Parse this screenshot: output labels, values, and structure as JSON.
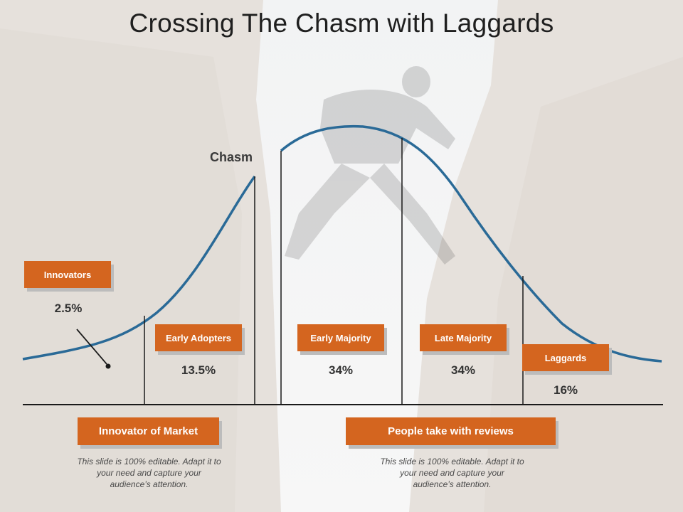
{
  "slide": {
    "title": "Crossing The Chasm with Laggards",
    "chasm_label": "Chasm"
  },
  "segments": [
    {
      "label": "Innovators",
      "percent": "2.5%"
    },
    {
      "label": "Early Adopters",
      "percent": "13.5%"
    },
    {
      "label": "Early Majority",
      "percent": "34%"
    },
    {
      "label": "Late Majority",
      "percent": "34%"
    },
    {
      "label": "Laggards",
      "percent": "16%"
    }
  ],
  "footer": {
    "left_title": "Innovator of Market",
    "left_note": "This slide is 100% editable. Adapt it to your need and capture your audience’s attention.",
    "right_title": "People take with reviews",
    "right_note": "This slide is 100% editable. Adapt it to your need and capture your audience’s attention."
  },
  "colors": {
    "accent": "#d4651f",
    "curve": "#2a6a97",
    "line": "#1a1a1a"
  }
}
